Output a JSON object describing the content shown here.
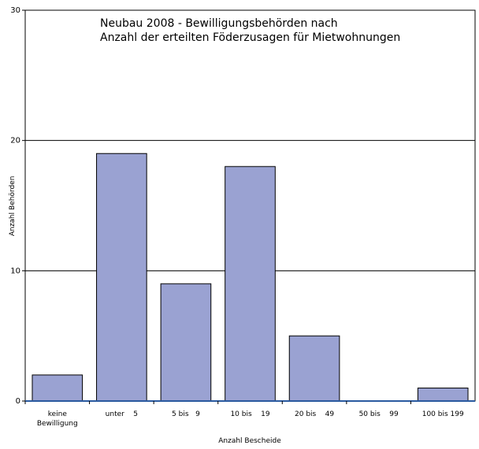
{
  "chart_data": {
    "type": "bar",
    "title_lines": [
      "Neubau 2008 - Bewilligungsbehörden nach",
      "Anzahl der erteilten Föderzusagen für Mietwohnungen"
    ],
    "xlabel": "Anzahl Bescheide",
    "ylabel": "Anzahl Behörden",
    "categories": [
      [
        "keine",
        "Bewilligung"
      ],
      [
        "unter    5"
      ],
      [
        "5 bis   9"
      ],
      [
        "10 bis    19"
      ],
      [
        "20 bis    49"
      ],
      [
        "50 bis    99"
      ],
      [
        "100 bis 199"
      ]
    ],
    "values": [
      2,
      19,
      9,
      18,
      5,
      0,
      1
    ],
    "ylim": [
      0,
      30
    ],
    "yticks": [
      0,
      10,
      20,
      30
    ],
    "grid": true,
    "colors": {
      "bar_fill": "#9aa2d2",
      "bar_stroke": "#000000",
      "x_axis": "#2a5aa0",
      "grid": "#000000"
    }
  }
}
